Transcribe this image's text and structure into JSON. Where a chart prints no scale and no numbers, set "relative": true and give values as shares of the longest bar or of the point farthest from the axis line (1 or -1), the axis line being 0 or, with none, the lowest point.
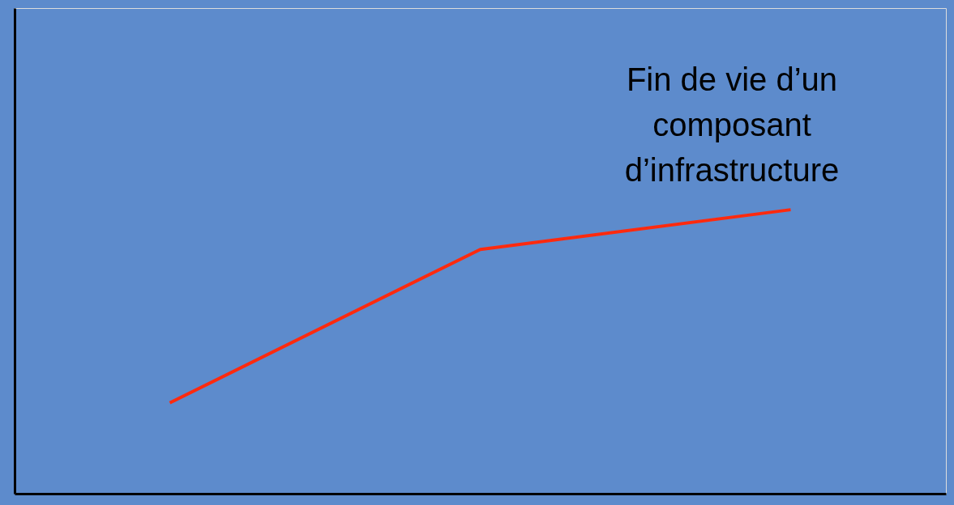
{
  "chart_data": {
    "type": "line",
    "relative": true,
    "categories": [
      null,
      null,
      null
    ],
    "series": [
      {
        "color": "#ff2a0e",
        "values": [
          0.32,
          0.86,
          1
        ]
      }
    ],
    "annotations": [
      "Fin de vie d’un composant d’infrastructure"
    ],
    "tick_labels": false,
    "grid": false,
    "marker": "none",
    "line_style": "solid"
  }
}
